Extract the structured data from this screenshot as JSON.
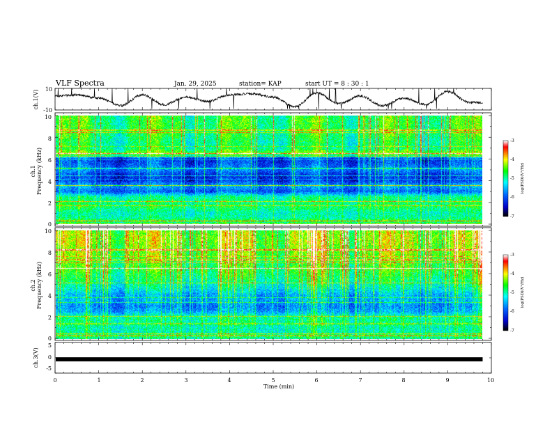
{
  "header": {
    "title": "VLF Spectra",
    "date": "Jan. 29, 2025",
    "station": "station= KAP",
    "start": "start  UT =  8 : 30 : 1"
  },
  "chart_data": [
    {
      "type": "line",
      "panel": "ch1-waveform",
      "ylabel": "ch.1(V)",
      "ylim": [
        -10,
        10
      ],
      "xlim": [
        0,
        10
      ],
      "yticks": [
        "10",
        "-10"
      ],
      "x_min": [
        0,
        0.5,
        1.0,
        1.5,
        2.0,
        2.5,
        3.0,
        3.5,
        4.0,
        4.5,
        5.0,
        5.5,
        6.0,
        6.5,
        7.0,
        7.5,
        8.0,
        8.5,
        9.0,
        9.5,
        9.8
      ],
      "values_v": [
        3,
        4,
        1,
        -6,
        4,
        -5,
        2,
        -2,
        4,
        5,
        2,
        -7,
        6,
        -4,
        3,
        -6,
        1,
        -5,
        7,
        -3,
        -3
      ]
    },
    {
      "type": "heatmap",
      "panel": "ch1-spectrogram",
      "ylabel_line1": "ch.1",
      "ylabel_line2": "Frequency  (kHz)",
      "ylim": [
        0,
        10
      ],
      "yticks": [
        "0",
        "2",
        "4",
        "6",
        "8",
        "10"
      ],
      "z_label": "log(PSD)(V²/Hz)",
      "z_range": [
        -7,
        -3
      ],
      "z_ticks": [
        "-3",
        "-4",
        "-5",
        "-6",
        "-7"
      ],
      "profile_freq_khz": [
        0,
        0.3,
        0.5,
        1.0,
        1.5,
        2.0,
        2.5,
        3.0,
        3.5,
        4.0,
        4.5,
        5.0,
        5.5,
        6.0,
        6.5,
        7.0,
        7.5,
        8.0,
        8.5,
        9.0,
        9.5,
        10.0
      ],
      "profile_log_psd": [
        -5.0,
        -4.6,
        -5.0,
        -5.1,
        -4.8,
        -4.9,
        -5.0,
        -6.0,
        -5.6,
        -6.2,
        -6.2,
        -5.8,
        -6.0,
        -6.2,
        -4.3,
        -4.9,
        -4.9,
        -4.8,
        -4.7,
        -4.7,
        -4.7,
        -4.7
      ]
    },
    {
      "type": "heatmap",
      "panel": "ch2-spectrogram",
      "ylabel_line1": "ch.2",
      "ylabel_line2": "Frequency  (kHz)",
      "ylim": [
        0,
        10
      ],
      "yticks": [
        "0",
        "2",
        "4",
        "6",
        "8",
        "10"
      ],
      "z_label": "log(PSD)(V²/Hz)",
      "z_range": [
        -7,
        -3
      ],
      "z_ticks": [
        "-3",
        "-4",
        "-5",
        "-6",
        "-7"
      ],
      "profile_freq_khz": [
        0,
        0.3,
        0.5,
        1.0,
        1.5,
        2.0,
        2.5,
        3.0,
        3.5,
        4.0,
        4.5,
        5.0,
        5.5,
        6.0,
        6.5,
        7.0,
        7.5,
        8.0,
        8.5,
        9.0,
        9.5,
        10.0
      ],
      "profile_log_psd": [
        -5.0,
        -4.7,
        -5.1,
        -5.1,
        -5.0,
        -5.0,
        -5.6,
        -5.8,
        -5.6,
        -5.6,
        -5.3,
        -5.1,
        -4.9,
        -4.8,
        -4.6,
        -4.7,
        -4.5,
        -4.4,
        -4.4,
        -4.3,
        -4.3,
        -4.4
      ]
    },
    {
      "type": "line",
      "panel": "ch3-waveform",
      "ylabel": "ch.3(V)",
      "ylim": [
        -5,
        5
      ],
      "xlim": [
        0,
        10
      ],
      "yticks": [
        "5",
        "0",
        "-5"
      ],
      "x_min": [
        0,
        9.8
      ],
      "values_v": [
        -0.5,
        -0.5
      ]
    }
  ],
  "time_axis": {
    "xlabel": "Time  (min)",
    "ticks": [
      "0",
      "1",
      "2",
      "3",
      "4",
      "5",
      "6",
      "7",
      "8",
      "9",
      "10"
    ],
    "data_end_min": 9.8
  },
  "colors": {
    "colormap": [
      "#000000",
      "#0000c8",
      "#0064ff",
      "#00ffff",
      "#00ff00",
      "#ffff00",
      "#ff0000",
      "#ffffff"
    ],
    "trace": "#000000"
  }
}
